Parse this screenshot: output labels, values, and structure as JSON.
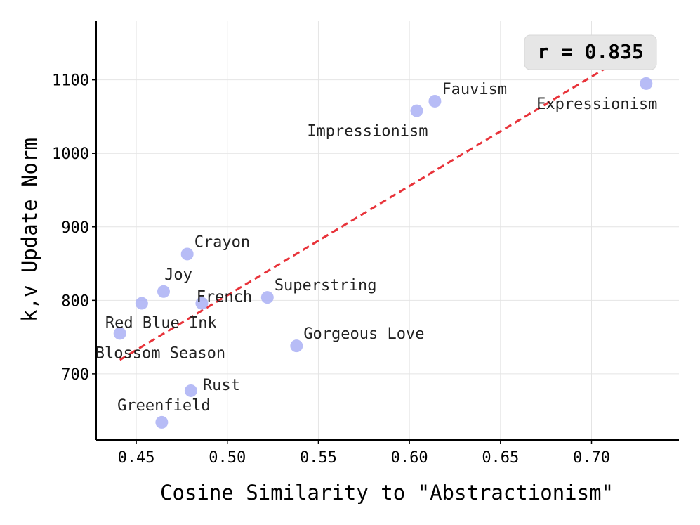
{
  "chart_data": {
    "type": "scatter",
    "xlabel": "Cosine Similarity to \"Abstractionism\"",
    "ylabel": "k,v Update Norm",
    "xlim": [
      0.428,
      0.748
    ],
    "ylim": [
      610,
      1180
    ],
    "x_ticks": [
      0.45,
      0.5,
      0.55,
      0.6,
      0.65,
      0.7
    ],
    "x_tick_labels": [
      "0.45",
      "0.50",
      "0.55",
      "0.60",
      "0.65",
      "0.70"
    ],
    "y_ticks": [
      700,
      800,
      900,
      1000,
      1100
    ],
    "y_tick_labels": [
      "700",
      "800",
      "900",
      "1000",
      "1100"
    ],
    "grid": true,
    "point_color": "#aab0f5",
    "trend_color": "#e8333a",
    "annotation": "r = 0.835",
    "trendline": {
      "x": [
        0.441,
        0.73
      ],
      "y": [
        719,
        1149
      ]
    },
    "points": [
      {
        "label": "Expressionism",
        "x": 0.73,
        "y": 1095,
        "label_pos": "below-left"
      },
      {
        "label": "Fauvism",
        "x": 0.614,
        "y": 1071,
        "label_pos": "above-right"
      },
      {
        "label": "Impressionism",
        "x": 0.604,
        "y": 1058,
        "label_pos": "below-left"
      },
      {
        "label": "Crayon",
        "x": 0.478,
        "y": 863,
        "label_pos": "above-right"
      },
      {
        "label": "Joy",
        "x": 0.465,
        "y": 812,
        "label_pos": "above"
      },
      {
        "label": "Red Blue Ink",
        "x": 0.453,
        "y": 796,
        "label_pos": "below-right"
      },
      {
        "label": "French",
        "x": 0.486,
        "y": 796,
        "label_pos": "center"
      },
      {
        "label": "Superstring",
        "x": 0.522,
        "y": 804,
        "label_pos": "above-right"
      },
      {
        "label": "Gorgeous Love",
        "x": 0.538,
        "y": 738,
        "label_pos": "above-right"
      },
      {
        "label": "Blossom Season",
        "x": 0.441,
        "y": 755,
        "label_pos": "below-right"
      },
      {
        "label": "Rust",
        "x": 0.48,
        "y": 677,
        "label_pos": "right"
      },
      {
        "label": "Greenfield",
        "x": 0.464,
        "y": 634,
        "label_pos": "above"
      }
    ]
  }
}
